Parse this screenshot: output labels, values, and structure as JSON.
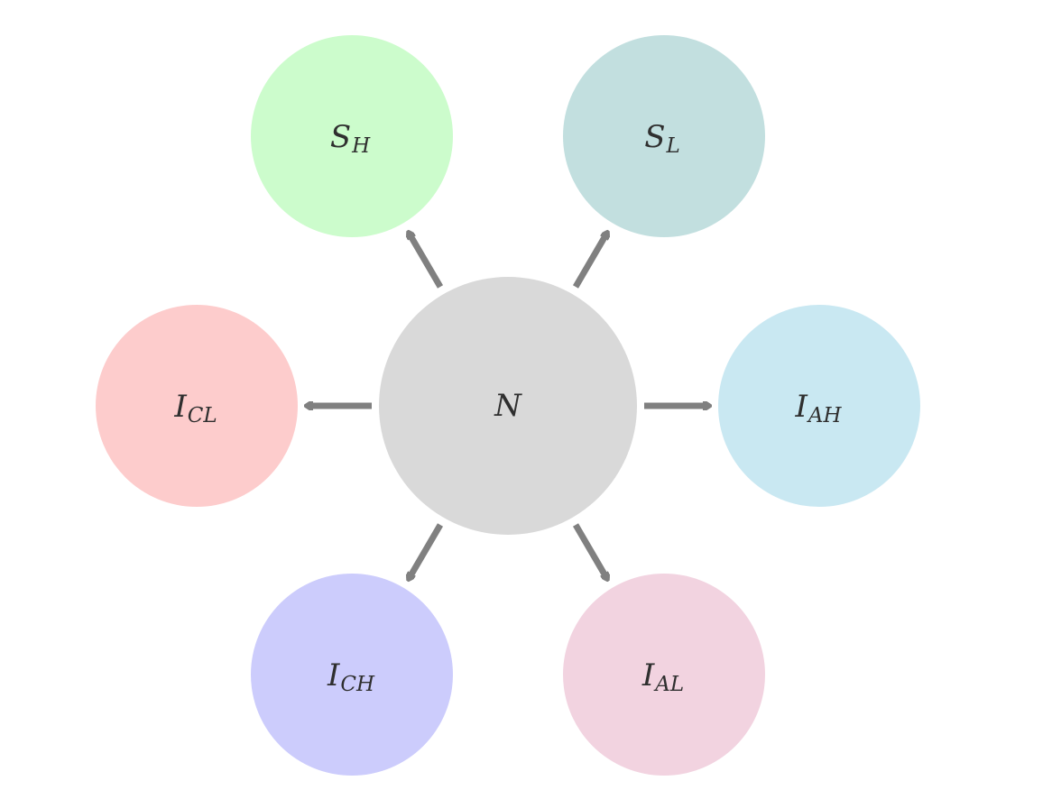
{
  "diagram": {
    "center": {
      "main": "N",
      "sub": "",
      "color": "#d9d9d9"
    },
    "nodes": {
      "s_h": {
        "main": "S",
        "sub": "H",
        "color": "#ccfccc"
      },
      "s_l": {
        "main": "S",
        "sub": "L",
        "color": "#c2dfdf"
      },
      "i_cl": {
        "main": "I",
        "sub": "CL",
        "color": "#fdcccc"
      },
      "i_ah": {
        "main": "I",
        "sub": "AH",
        "color": "#c9e8f2"
      },
      "i_ch": {
        "main": "I",
        "sub": "CH",
        "color": "#ccccfc"
      },
      "i_al": {
        "main": "I",
        "sub": "AL",
        "color": "#f2d3e0"
      }
    },
    "edges": [
      {
        "from": "center",
        "to": "s_h"
      },
      {
        "from": "center",
        "to": "s_l"
      },
      {
        "from": "center",
        "to": "i_cl"
      },
      {
        "from": "center",
        "to": "i_ah"
      },
      {
        "from": "center",
        "to": "i_ch"
      },
      {
        "from": "center",
        "to": "i_al"
      }
    ],
    "arrow_color": "#808080"
  }
}
